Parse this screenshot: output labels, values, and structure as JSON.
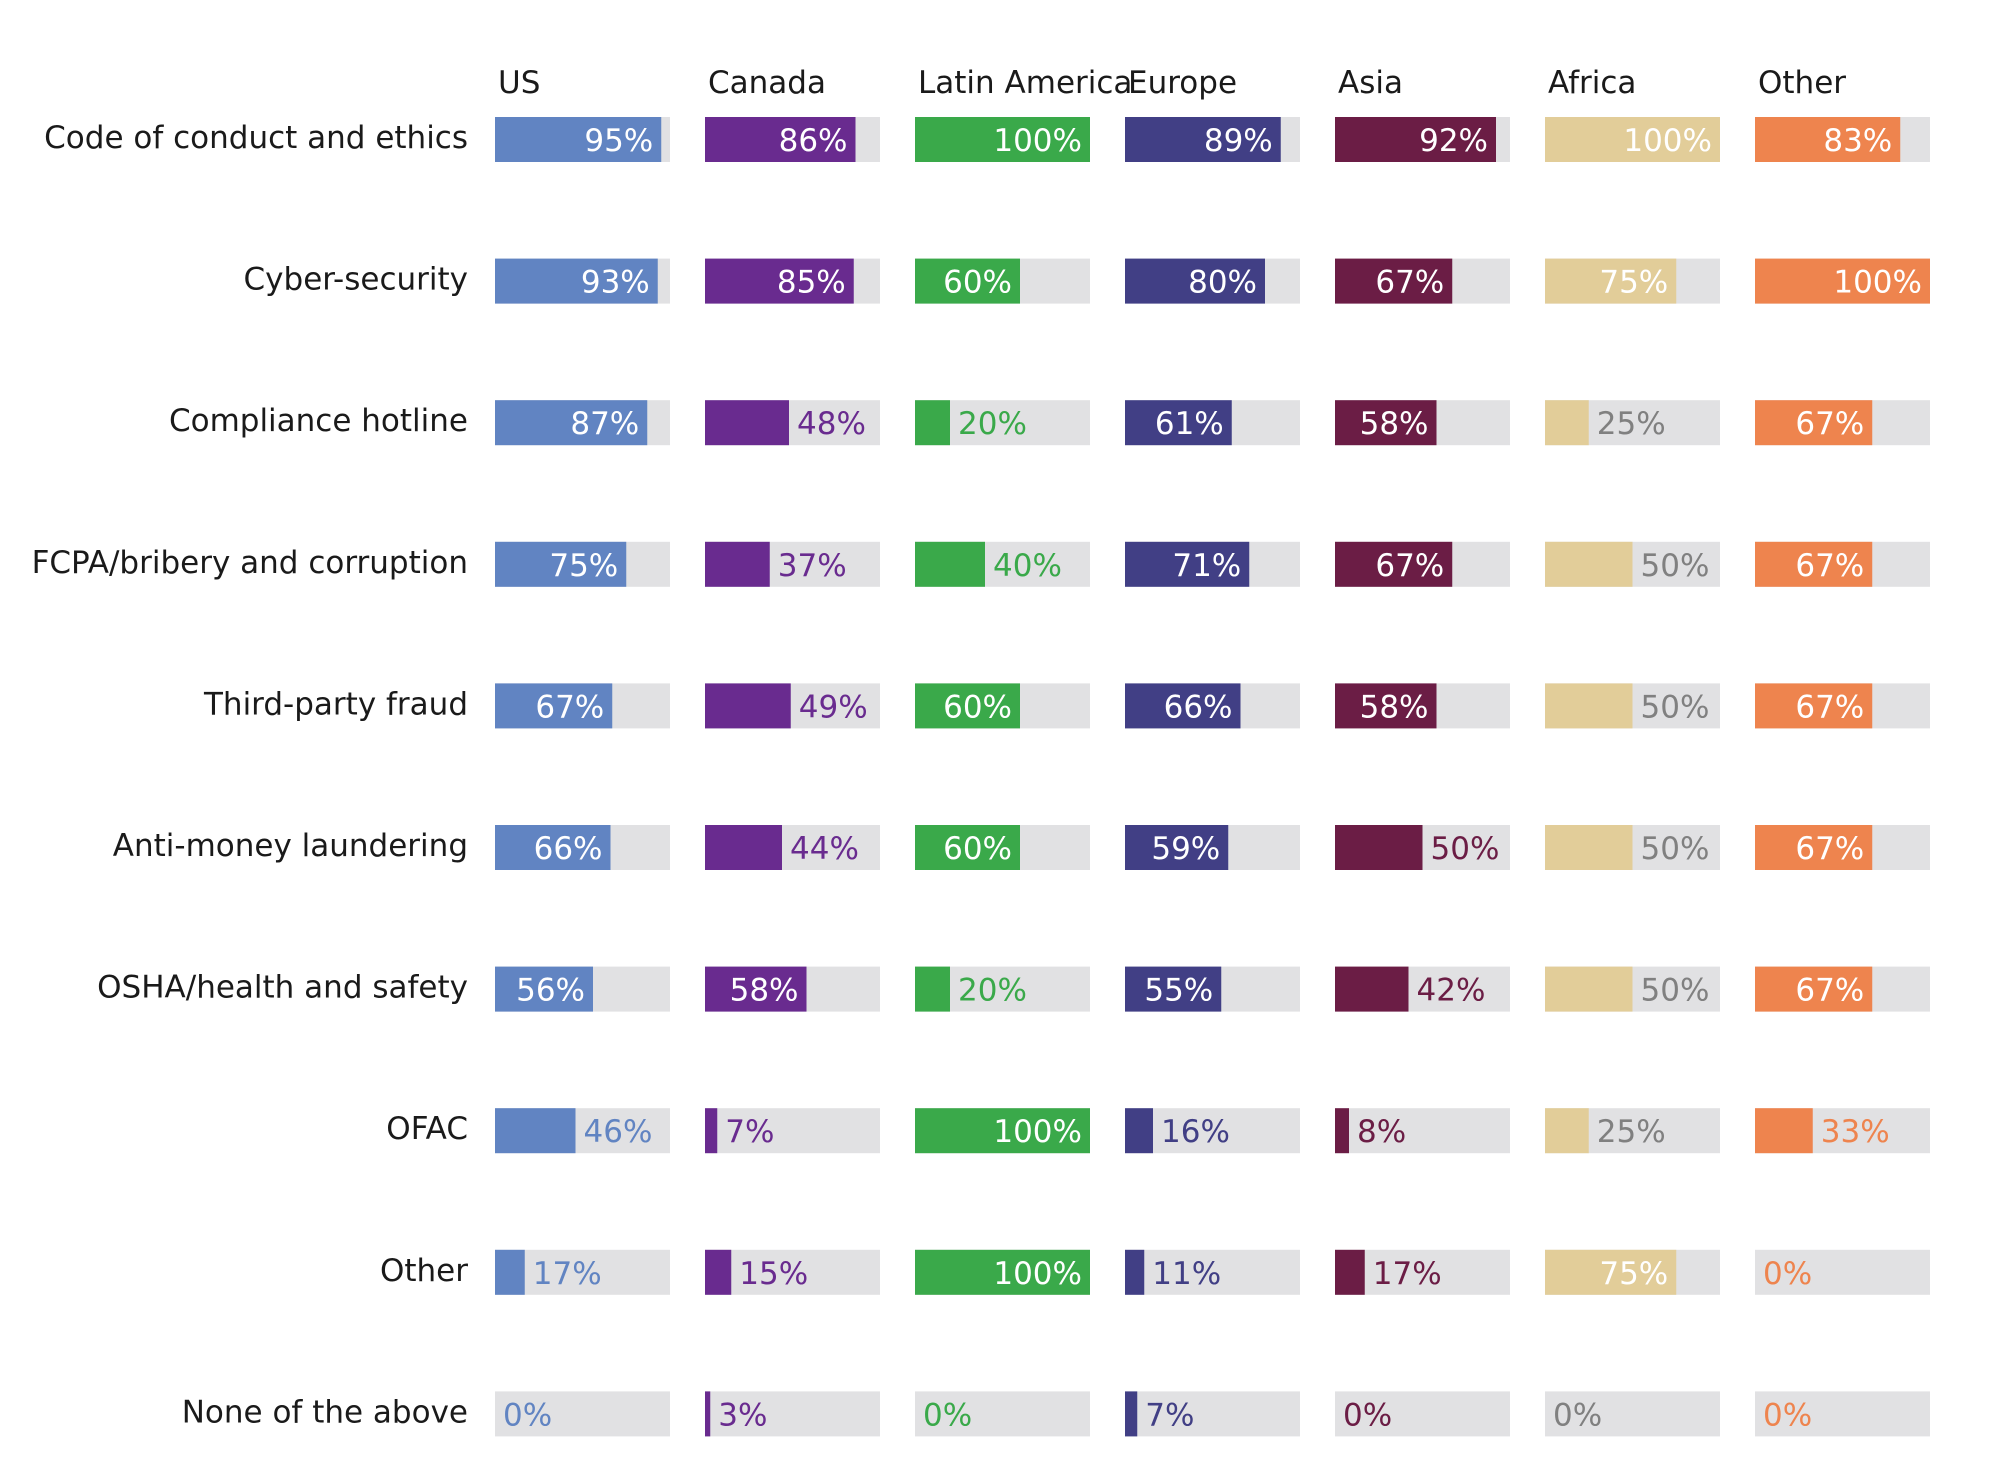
{
  "chart_data": {
    "type": "bar",
    "title": "",
    "regions": [
      {
        "name": "US",
        "color": "#6184c2",
        "inside_text": "#ffffff",
        "outside_text": "#6184c2"
      },
      {
        "name": "Canada",
        "color": "#692b8f",
        "inside_text": "#ffffff",
        "outside_text": "#692b8f"
      },
      {
        "name": "Latin America",
        "color": "#3aa94a",
        "inside_text": "#ffffff",
        "outside_text": "#3aa94a"
      },
      {
        "name": "Europe",
        "color": "#413f85",
        "inside_text": "#ffffff",
        "outside_text": "#413f85"
      },
      {
        "name": "Asia",
        "color": "#6b1d45",
        "inside_text": "#ffffff",
        "outside_text": "#6b1d45"
      },
      {
        "name": "Africa",
        "color": "#e2cd99",
        "inside_text": "#ffffff",
        "outside_text": "#808080"
      },
      {
        "name": "Other",
        "color": "#ee844e",
        "inside_text": "#ffffff",
        "outside_text": "#ee844e"
      }
    ],
    "categories": [
      "Code of conduct and ethics",
      "Cyber-security",
      "Compliance hotline",
      "FCPA/bribery and corruption",
      "Third-party fraud",
      "Anti-money laundering",
      "OSHA/health and safety",
      "OFAC",
      "Other",
      "None of the above"
    ],
    "values": [
      [
        95,
        86,
        100,
        89,
        92,
        100,
        83
      ],
      [
        93,
        85,
        60,
        80,
        67,
        75,
        100
      ],
      [
        87,
        48,
        20,
        61,
        58,
        25,
        67
      ],
      [
        75,
        37,
        40,
        71,
        67,
        50,
        67
      ],
      [
        67,
        49,
        60,
        66,
        58,
        50,
        67
      ],
      [
        66,
        44,
        60,
        59,
        50,
        50,
        67
      ],
      [
        56,
        58,
        20,
        55,
        42,
        50,
        67
      ],
      [
        46,
        7,
        100,
        16,
        8,
        25,
        33
      ],
      [
        17,
        15,
        100,
        11,
        17,
        75,
        0
      ],
      [
        0,
        3,
        0,
        7,
        0,
        0,
        0
      ]
    ],
    "labels": [
      [
        "95%",
        "86%",
        "100%",
        "89%",
        "92%",
        "100%",
        "83%"
      ],
      [
        "93%",
        "85%",
        "60%",
        "80%",
        "67%",
        "75%",
        "100%"
      ],
      [
        "87%",
        "48%",
        "20%",
        "61%",
        "58%",
        "25%",
        "67%"
      ],
      [
        "75%",
        "37%",
        "40%",
        "71%",
        "67%",
        "50%",
        "67%"
      ],
      [
        "67%",
        "49%",
        "60%",
        "66%",
        "58%",
        "50%",
        "67%"
      ],
      [
        "66%",
        "44%",
        "60%",
        "59%",
        "50%",
        "50%",
        "67%"
      ],
      [
        "56%",
        "58%",
        "20%",
        "55%",
        "42%",
        "50%",
        "67%"
      ],
      [
        "46%",
        "7%",
        "100%",
        "16%",
        "8%",
        "25%",
        "33%"
      ],
      [
        "17%",
        "15%",
        "100%",
        "11%",
        "17%",
        "75%",
        "0%"
      ],
      [
        "0%",
        "3%",
        "0%",
        "7%",
        "0%",
        "0%",
        "0%"
      ]
    ],
    "xlim": [
      0,
      100
    ],
    "track_color": "#e1e1e3",
    "grid": false,
    "legend": "none"
  }
}
